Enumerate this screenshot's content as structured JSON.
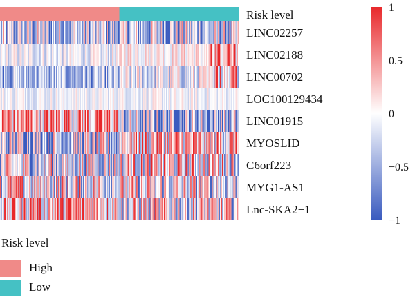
{
  "chart_data": {
    "type": "heatmap",
    "title": "",
    "rows": [
      "LINC02257",
      "LINC02188",
      "LINC00702",
      "LOC100129434",
      "LINC01915",
      "MYOSLID",
      "C6orf223",
      "MYG1-AS1",
      "Lnc-SKA2−1"
    ],
    "annotation": {
      "label": "Risk level",
      "groups": [
        {
          "name": "High",
          "color": "#f08a88",
          "fraction": 0.5
        },
        {
          "name": "Low",
          "color": "#45c1c4",
          "fraction": 0.5
        }
      ]
    },
    "colorbar": {
      "range": [
        -1,
        1
      ],
      "ticks": [
        1,
        0.5,
        0,
        -0.5,
        -1
      ],
      "tick_labels": [
        "1",
        "0.5",
        "0",
        "−0.5",
        "−1"
      ],
      "colors": {
        "low": "#3a5bbf",
        "mid": "#ffffff",
        "high": "#e8282b"
      }
    }
  },
  "legend": {
    "title": "Risk level",
    "items": [
      {
        "label": "High",
        "color": "#f08a88"
      },
      {
        "label": "Low",
        "color": "#45c1c4"
      }
    ]
  }
}
